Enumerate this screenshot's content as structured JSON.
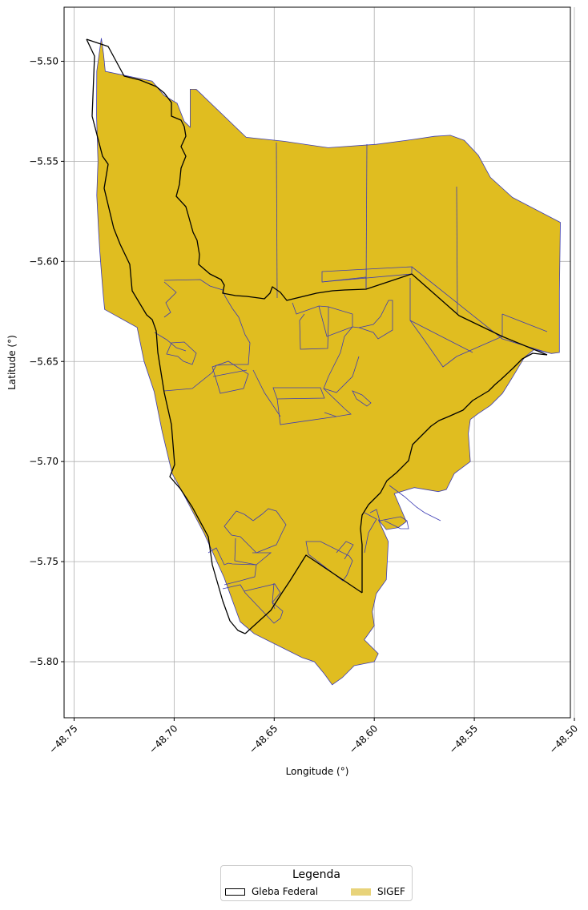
{
  "chart_data": {
    "type": "map",
    "xlabel": "Longitude (°)",
    "ylabel": "Latitude (°)",
    "xlim": [
      -48.755,
      -48.502
    ],
    "ylim": [
      -5.828,
      -5.473
    ],
    "x_ticks": [
      -48.75,
      -48.7,
      -48.65,
      -48.6,
      -48.55,
      -48.5
    ],
    "x_tick_labels": [
      "−48.75",
      "−48.70",
      "−48.65",
      "−48.60",
      "−48.55",
      "−48.50"
    ],
    "y_ticks": [
      -5.5,
      -5.55,
      -5.6,
      -5.65,
      -5.7,
      -5.75,
      -5.8
    ],
    "y_tick_labels": [
      "−5.50",
      "−5.55",
      "−5.60",
      "−5.65",
      "−5.70",
      "−5.75",
      "−5.80"
    ],
    "grid": true,
    "colors": {
      "sigef_fill": "#e0bd20",
      "sigef_edge": "#3c3cb4",
      "gleba_edge": "#000000",
      "legend_sigef": "#e8d37a"
    },
    "layers": [
      {
        "name": "SIGEF",
        "outline": [
          [
            -48.7388,
            -5.4885
          ],
          [
            -48.7318,
            -5.4963
          ],
          [
            -48.7258,
            -5.505
          ],
          [
            -48.7175,
            -5.508
          ],
          [
            -48.711,
            -5.5099
          ],
          [
            -48.705,
            -5.5171
          ],
          [
            -48.698,
            -5.521
          ],
          [
            -48.6948,
            -5.53
          ],
          [
            -48.69,
            -5.5345
          ],
          [
            -48.692,
            -5.547
          ],
          [
            -48.689,
            -5.5605
          ],
          [
            -48.685,
            -5.5785
          ],
          [
            -48.68,
            -5.5905
          ],
          [
            -48.6762,
            -5.6015
          ],
          [
            -48.6712,
            -5.6095
          ],
          [
            -48.665,
            -5.614
          ],
          [
            -48.657,
            -5.616
          ],
          [
            -48.6525,
            -5.6155
          ],
          [
            -48.643,
            -5.6105
          ],
          [
            -48.633,
            -5.609
          ],
          [
            -48.617,
            -5.607
          ],
          [
            -48.61,
            -5.607
          ],
          [
            -48.6,
            -5.6065
          ],
          [
            -48.59,
            -5.606
          ],
          [
            -48.578,
            -5.6063
          ],
          [
            -48.57,
            -5.611
          ],
          [
            -48.56,
            -5.62
          ],
          [
            -48.55,
            -5.627
          ],
          [
            -48.54,
            -5.633
          ],
          [
            -48.529,
            -5.638
          ],
          [
            -48.52,
            -5.641
          ],
          [
            -48.5115,
            -5.6445
          ],
          [
            -48.5075,
            -5.645
          ],
          [
            -48.5075,
            -5.615
          ],
          [
            -48.507,
            -5.5805
          ],
          [
            -48.515,
            -5.576
          ],
          [
            -48.523,
            -5.572
          ],
          [
            -48.531,
            -5.568
          ],
          [
            -48.537,
            -5.562
          ],
          [
            -48.542,
            -5.558
          ],
          [
            -48.548,
            -5.547
          ],
          [
            -48.555,
            -5.5395
          ],
          [
            -48.562,
            -5.537
          ],
          [
            -48.57,
            -5.5375
          ],
          [
            -48.58,
            -5.539
          ],
          [
            -48.589,
            -5.5405
          ],
          [
            -48.599,
            -5.5415
          ],
          [
            -48.608,
            -5.5425
          ],
          [
            -48.614,
            -5.5435
          ],
          [
            -48.623,
            -5.543
          ],
          [
            -48.633,
            -5.542
          ],
          [
            -48.645,
            -5.54
          ],
          [
            -48.656,
            -5.5385
          ],
          [
            -48.664,
            -5.535
          ],
          [
            -48.676,
            -5.525
          ],
          [
            -48.689,
            -5.514
          ],
          [
            -48.689,
            -5.53
          ],
          [
            -48.689,
            -5.555
          ],
          [
            -48.692,
            -5.555
          ],
          [
            -48.692,
            -5.532
          ],
          [
            -48.71,
            -5.521
          ],
          [
            -48.721,
            -5.514
          ],
          [
            -48.724,
            -5.509
          ],
          [
            -48.721,
            -5.508
          ],
          [
            -48.725,
            -5.5075
          ],
          [
            -48.725,
            -5.5118
          ],
          [
            -48.73,
            -5.511
          ]
        ],
        "outline_lower": [
          [
            -48.7185,
            -5.633
          ],
          [
            -48.715,
            -5.65
          ],
          [
            -48.71,
            -5.665
          ],
          [
            -48.706,
            -5.685
          ],
          [
            -48.701,
            -5.706
          ],
          [
            -48.696,
            -5.715
          ],
          [
            -48.685,
            -5.736
          ],
          [
            -48.675,
            -5.758
          ],
          [
            -48.667,
            -5.78
          ],
          [
            -48.66,
            -5.786
          ],
          [
            -48.646,
            -5.793
          ],
          [
            -48.636,
            -5.798
          ],
          [
            -48.63,
            -5.8
          ],
          [
            -48.625,
            -5.806
          ],
          [
            -48.621,
            -5.8115
          ],
          [
            -48.616,
            -5.808
          ],
          [
            -48.61,
            -5.802
          ],
          [
            -48.605,
            -5.801
          ],
          [
            -48.6,
            -5.8
          ],
          [
            -48.598,
            -5.796
          ],
          [
            -48.605,
            -5.789
          ],
          [
            -48.6,
            -5.782
          ],
          [
            -48.601,
            -5.775
          ],
          [
            -48.599,
            -5.766
          ],
          [
            -48.594,
            -5.759
          ],
          [
            -48.593,
            -5.74
          ],
          [
            -48.598,
            -5.729
          ],
          [
            -48.603,
            -5.727
          ],
          [
            -48.6,
            -5.732
          ],
          [
            -48.594,
            -5.734
          ],
          [
            -48.588,
            -5.733
          ],
          [
            -48.584,
            -5.73
          ],
          [
            -48.59,
            -5.716
          ],
          [
            -48.58,
            -5.713
          ],
          [
            -48.568,
            -5.715
          ],
          [
            -48.564,
            -5.714
          ],
          [
            -48.56,
            -5.706
          ],
          [
            -48.552,
            -5.7
          ],
          [
            -48.553,
            -5.68
          ],
          [
            -48.556,
            -5.68
          ],
          [
            -48.56,
            -5.673
          ],
          [
            -48.565,
            -5.666
          ],
          [
            -48.572,
            -5.658
          ],
          [
            -48.575,
            -5.648
          ],
          [
            -48.567,
            -5.641
          ],
          [
            -48.56,
            -5.625
          ],
          [
            -48.538,
            -5.635
          ],
          [
            -48.52,
            -5.641
          ],
          [
            -48.5115,
            -5.6445
          ],
          [
            -48.5075,
            -5.646
          ]
        ]
      },
      {
        "name": "Gleba Federal"
      }
    ],
    "legend": {
      "title": "Legenda",
      "placement": "bottom-center",
      "items": [
        {
          "label": "Gleba Federal"
        },
        {
          "label": "SIGEF"
        }
      ]
    }
  }
}
